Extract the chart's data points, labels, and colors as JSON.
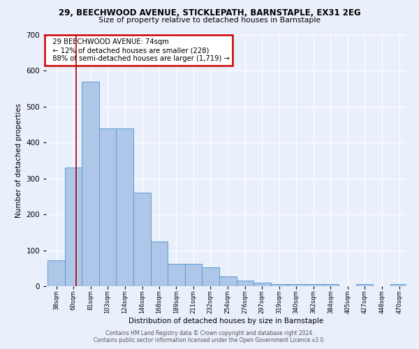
{
  "title1": "29, BEECHWOOD AVENUE, STICKLEPATH, BARNSTAPLE, EX31 2EG",
  "title2": "Size of property relative to detached houses in Barnstaple",
  "xlabel": "Distribution of detached houses by size in Barnstaple",
  "ylabel": "Number of detached properties",
  "footnote1": "Contains HM Land Registry data © Crown copyright and database right 2024.",
  "footnote2": "Contains public sector information licensed under the Open Government Licence v3.0.",
  "bins": [
    38,
    60,
    81,
    103,
    124,
    146,
    168,
    189,
    211,
    232,
    254,
    276,
    297,
    319,
    340,
    362,
    384,
    405,
    427,
    448,
    470
  ],
  "counts": [
    72,
    330,
    570,
    440,
    440,
    260,
    125,
    63,
    63,
    52,
    28,
    15,
    10,
    6,
    6,
    6,
    6,
    0,
    6,
    0,
    6
  ],
  "bar_color": "#aec6e8",
  "bar_edge_color": "#5b9bd5",
  "red_line_x": 74,
  "annotation_title": "29 BEECHWOOD AVENUE: 74sqm",
  "annotation_line1": "← 12% of detached houses are smaller (228)",
  "annotation_line2": "88% of semi-detached houses are larger (1,719) →",
  "annotation_box_color": "#ffffff",
  "annotation_box_edge": "#cc0000",
  "ylim": [
    0,
    700
  ],
  "background_color": "#eaf0fb",
  "grid_color": "#ffffff"
}
